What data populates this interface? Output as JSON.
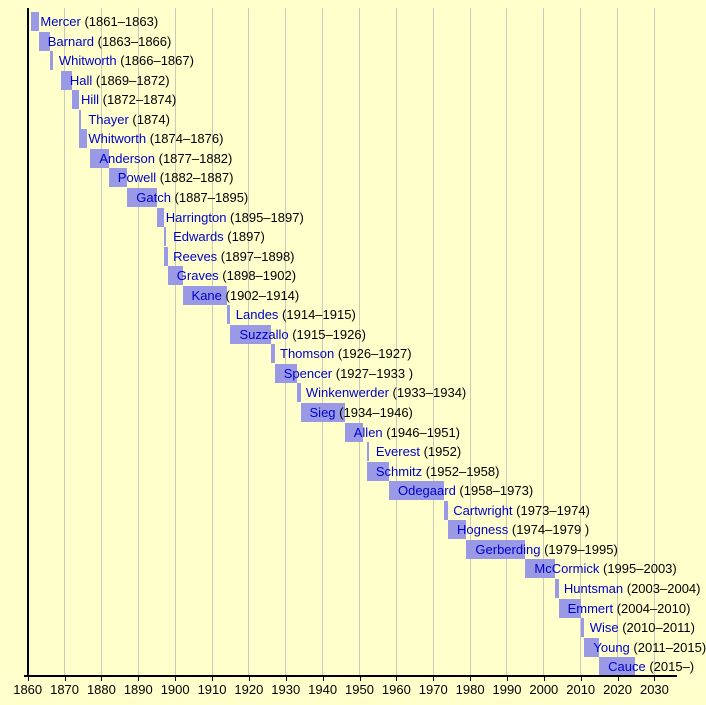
{
  "chart_data": {
    "type": "bar",
    "subtype": "horizontal-timeline-gantt",
    "title": "",
    "xlabel": "",
    "ylabel": "",
    "grid": true,
    "x_axis": {
      "min": 1860,
      "max": 2030,
      "tick_interval": 10,
      "ticks": [
        1860,
        1870,
        1880,
        1890,
        1900,
        1910,
        1920,
        1930,
        1940,
        1950,
        1960,
        1970,
        1980,
        1990,
        2000,
        2010,
        2020,
        2030
      ]
    },
    "colors": {
      "background": "#FFFFCC",
      "bar": "#9999E6",
      "name_text": "#0000CC",
      "term_text": "#000000",
      "gridline": "#C9C9BD",
      "axis": "#000000"
    },
    "bars": [
      {
        "name": "Mercer",
        "term": "(1861–1863)",
        "start": 1861,
        "end": 1863
      },
      {
        "name": "Barnard",
        "term": "(1863–1866)",
        "start": 1863,
        "end": 1866
      },
      {
        "name": "Whitworth",
        "term": "(1866–1867)",
        "start": 1866,
        "end": 1867
      },
      {
        "name": "Hall",
        "term": "(1869–1872)",
        "start": 1869,
        "end": 1872
      },
      {
        "name": "Hill",
        "term": "(1872–1874)",
        "start": 1872,
        "end": 1874
      },
      {
        "name": "Thayer",
        "term": "(1874)",
        "start": 1874,
        "end": 1874.4
      },
      {
        "name": "Whitworth",
        "term": "(1874–1876)",
        "start": 1874,
        "end": 1876
      },
      {
        "name": "Anderson",
        "term": "(1877–1882)",
        "start": 1877,
        "end": 1882
      },
      {
        "name": "Powell",
        "term": "(1882–1887)",
        "start": 1882,
        "end": 1887
      },
      {
        "name": "Gatch",
        "term": "(1887–1895)",
        "start": 1887,
        "end": 1895
      },
      {
        "name": "Harrington",
        "term": "(1895–1897)",
        "start": 1895,
        "end": 1897
      },
      {
        "name": "Edwards",
        "term": "(1897)",
        "start": 1897,
        "end": 1897.4
      },
      {
        "name": "Reeves",
        "term": "(1897–1898)",
        "start": 1897,
        "end": 1898
      },
      {
        "name": "Graves",
        "term": "(1898–1902)",
        "start": 1898,
        "end": 1902
      },
      {
        "name": "Kane",
        "term": "(1902–1914)",
        "start": 1902,
        "end": 1914
      },
      {
        "name": "Landes",
        "term": "(1914–1915)",
        "start": 1914,
        "end": 1915
      },
      {
        "name": "Suzzallo",
        "term": "(1915–1926)",
        "start": 1915,
        "end": 1926
      },
      {
        "name": "Thomson",
        "term": "(1926–1927)",
        "start": 1926,
        "end": 1927
      },
      {
        "name": "Spencer",
        "term": "(1927–1933 )",
        "start": 1927,
        "end": 1933
      },
      {
        "name": "Winkenwerder",
        "term": "(1933–1934)",
        "start": 1933,
        "end": 1934
      },
      {
        "name": "Sieg",
        "term": "(1934–1946)",
        "start": 1934,
        "end": 1946
      },
      {
        "name": "Allen",
        "term": "(1946–1951)",
        "start": 1946,
        "end": 1951
      },
      {
        "name": "Everest",
        "term": "(1952)",
        "start": 1952,
        "end": 1952.4
      },
      {
        "name": "Schmitz",
        "term": "(1952–1958)",
        "start": 1952,
        "end": 1958
      },
      {
        "name": "Odegaard",
        "term": "(1958–1973)",
        "start": 1958,
        "end": 1973
      },
      {
        "name": "Cartwright",
        "term": "(1973–1974)",
        "start": 1973,
        "end": 1974
      },
      {
        "name": "Hogness",
        "term": "(1974–1979 )",
        "start": 1974,
        "end": 1979
      },
      {
        "name": "Gerberding",
        "term": "(1979–1995)",
        "start": 1979,
        "end": 1995
      },
      {
        "name": "McCormick",
        "term": "(1995–2003)",
        "start": 1995,
        "end": 2003
      },
      {
        "name": "Huntsman",
        "term": "(2003–2004)",
        "start": 2003,
        "end": 2004
      },
      {
        "name": "Emmert",
        "term": "(2004–2010)",
        "start": 2004,
        "end": 2010
      },
      {
        "name": "Wise",
        "term": "(2010–2011)",
        "start": 2010,
        "end": 2011
      },
      {
        "name": "Young",
        "term": "(2011–2015)",
        "start": 2011,
        "end": 2015
      },
      {
        "name": "Cauce",
        "term": "(2015–)",
        "start": 2015,
        "end": 2024.6
      }
    ]
  }
}
